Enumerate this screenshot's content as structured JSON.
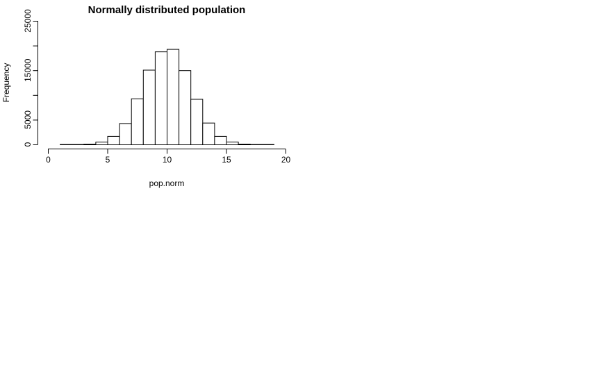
{
  "chart_data": {
    "type": "bar",
    "title": "Normally distributed population",
    "xlabel": "pop.norm",
    "ylabel": "Frequency",
    "xlim": [
      0,
      20
    ],
    "ylim": [
      0,
      25000
    ],
    "bin_width": 1,
    "bins_start": [
      1,
      2,
      3,
      4,
      5,
      6,
      7,
      8,
      9,
      10,
      11,
      12,
      13,
      14,
      15,
      16,
      17,
      18
    ],
    "values": [
      3,
      25,
      130,
      550,
      1700,
      4300,
      9300,
      15100,
      18800,
      19300,
      15000,
      9200,
      4400,
      1700,
      560,
      140,
      35,
      5
    ],
    "x_ticks": [
      "0",
      "5",
      "10",
      "15",
      "20"
    ],
    "y_ticks": [
      "0",
      "5000",
      "15000",
      "25000"
    ],
    "colors": {
      "bar_fill": "#ffffff",
      "bar_stroke": "#000000"
    }
  }
}
